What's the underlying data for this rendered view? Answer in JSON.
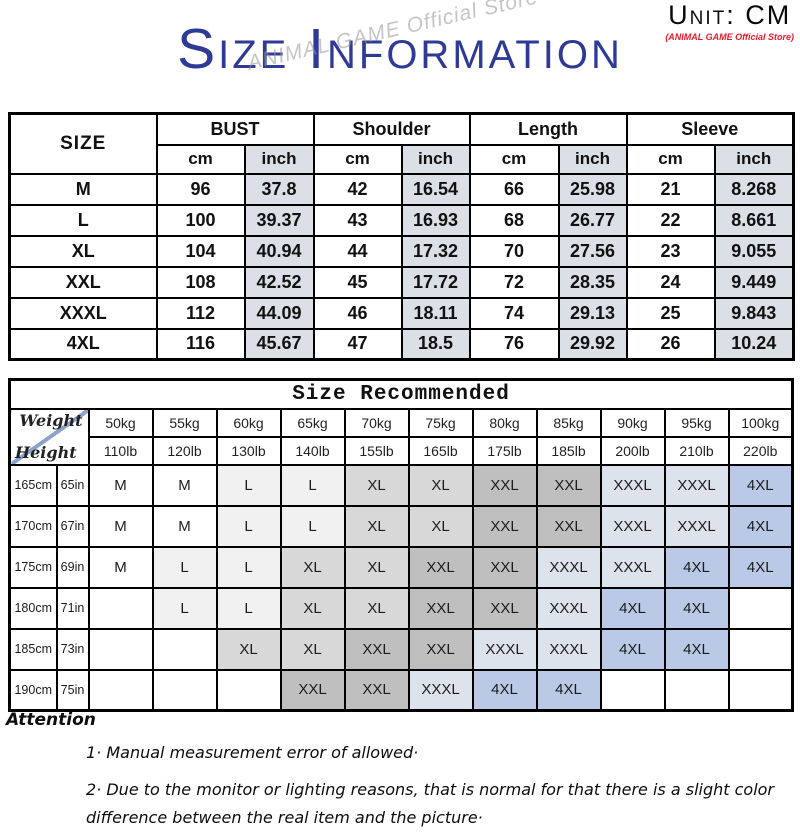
{
  "header": {
    "unit_label": "Unit: CM",
    "store_label": "(ANIMAL GAME Official Store)",
    "title": "Size Information",
    "watermark": "ANIMAL GAME Official Store"
  },
  "colors": {
    "title_blue": "#2e3a96",
    "store_red": "#e8192c",
    "inch_bg": "#dbdfe6",
    "size_L": "#f1f1f1",
    "size_XL": "#d8d8d8",
    "size_XXL": "#bfbfbf",
    "size_XXXL": "#dde3ec",
    "size_4XL": "#bac9e6",
    "diagonal_line": "#8ea3cc"
  },
  "size_table": {
    "corner_label": "SIZE",
    "group_headers": [
      "BUST",
      "Shoulder",
      "Length",
      "Sleeve"
    ],
    "unit_headers": [
      "cm",
      "inch",
      "cm",
      "inch",
      "cm",
      "inch",
      "cm",
      "inch"
    ],
    "rows": [
      {
        "size": "M",
        "values": [
          "96",
          "37.8",
          "42",
          "16.54",
          "66",
          "25.98",
          "21",
          "8.268"
        ]
      },
      {
        "size": "L",
        "values": [
          "100",
          "39.37",
          "43",
          "16.93",
          "68",
          "26.77",
          "22",
          "8.661"
        ]
      },
      {
        "size": "XL",
        "values": [
          "104",
          "40.94",
          "44",
          "17.32",
          "70",
          "27.56",
          "23",
          "9.055"
        ]
      },
      {
        "size": "XXL",
        "values": [
          "108",
          "42.52",
          "45",
          "17.72",
          "72",
          "28.35",
          "24",
          "9.449"
        ]
      },
      {
        "size": "XXXL",
        "values": [
          "112",
          "44.09",
          "46",
          "18.11",
          "74",
          "29.13",
          "25",
          "9.843"
        ]
      },
      {
        "size": "4XL",
        "values": [
          "116",
          "45.67",
          "47",
          "18.5",
          "76",
          "29.92",
          "26",
          "10.24"
        ]
      }
    ]
  },
  "recommend_table": {
    "title": "Size Recommended",
    "corner": {
      "top": "Weight",
      "bottom": "Height"
    },
    "weights_kg": [
      "50kg",
      "55kg",
      "60kg",
      "65kg",
      "70kg",
      "75kg",
      "80kg",
      "85kg",
      "90kg",
      "95kg",
      "100kg"
    ],
    "weights_lb": [
      "110lb",
      "120lb",
      "130lb",
      "140lb",
      "155lb",
      "165lb",
      "175lb",
      "185lb",
      "200lb",
      "210lb",
      "220lb"
    ],
    "rows": [
      {
        "height_cm": "165cm",
        "height_in": "65in",
        "cells": [
          "M",
          "M",
          "L",
          "L",
          "XL",
          "XL",
          "XXL",
          "XXL",
          "XXXL",
          "XXXL",
          "4XL"
        ]
      },
      {
        "height_cm": "170cm",
        "height_in": "67in",
        "cells": [
          "M",
          "M",
          "L",
          "L",
          "XL",
          "XL",
          "XXL",
          "XXL",
          "XXXL",
          "XXXL",
          "4XL"
        ]
      },
      {
        "height_cm": "175cm",
        "height_in": "69in",
        "cells": [
          "M",
          "L",
          "L",
          "XL",
          "XL",
          "XXL",
          "XXL",
          "XXXL",
          "XXXL",
          "4XL",
          "4XL"
        ]
      },
      {
        "height_cm": "180cm",
        "height_in": "71in",
        "cells": [
          "",
          "L",
          "L",
          "XL",
          "XL",
          "XXL",
          "XXL",
          "XXXL",
          "4XL",
          "4XL",
          ""
        ]
      },
      {
        "height_cm": "185cm",
        "height_in": "73in",
        "cells": [
          "",
          "",
          "XL",
          "XL",
          "XXL",
          "XXL",
          "XXXL",
          "XXXL",
          "4XL",
          "4XL",
          ""
        ]
      },
      {
        "height_cm": "190cm",
        "height_in": "75in",
        "cells": [
          "",
          "",
          "",
          "XXL",
          "XXL",
          "XXXL",
          "4XL",
          "4XL",
          "",
          "",
          ""
        ]
      }
    ]
  },
  "attention": {
    "heading": "Attention",
    "notes": [
      "1·  Manual measurement error of allowed·",
      "2·  Due to the monitor or lighting reasons, that is normal for that there is a slight color difference between the real item and the picture·"
    ]
  }
}
